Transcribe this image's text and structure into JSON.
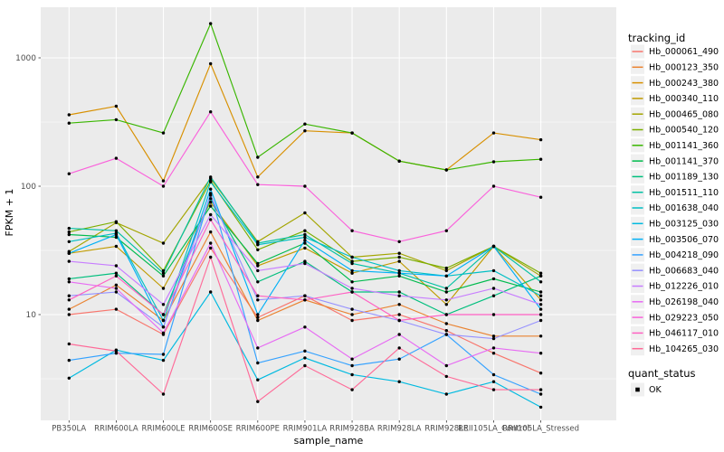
{
  "figure": {
    "background": "#FFFFFF",
    "panel_background": "#EBEBEB",
    "gridline_color": "#FFFFFF",
    "tick_label_color": "#4D4D4D",
    "axis_title_color": "#000000",
    "point_color": "#000000",
    "legend_key_background": "#F0F0F0"
  },
  "chart_data": {
    "type": "line",
    "title": "",
    "xlabel": "sample_name",
    "ylabel": "FPKM + 1",
    "y_scale": "log10",
    "ylim": [
      1.5,
      2500
    ],
    "y_ticks": [
      10,
      100,
      1000
    ],
    "y_minor_ticks": [
      3.162,
      31.62,
      316.2
    ],
    "grid": true,
    "legend_position": "right",
    "categories": [
      "PB350LA",
      "RRIM600LA",
      "RRIM600LE",
      "RRIM600SE",
      "RRIM600PE",
      "RRIM901LA",
      "RRIM928BA",
      "RRIM928LA",
      "RRIM928LE",
      "RRII105LA_Control",
      "RRII105LA_Stressed"
    ],
    "series": [
      {
        "name": "Hb_000061_490",
        "color": "#F8766D",
        "values": [
          10,
          11,
          7,
          33,
          9.5,
          14,
          9,
          10,
          7.5,
          5,
          3.5
        ]
      },
      {
        "name": "Hb_000123_350",
        "color": "#EA8331",
        "values": [
          11,
          17,
          9,
          44,
          9,
          13,
          10,
          12,
          8.5,
          6.8,
          6.8
        ]
      },
      {
        "name": "Hb_000243_380",
        "color": "#D89000",
        "values": [
          360,
          420,
          110,
          900,
          118,
          270,
          260,
          157,
          134,
          260,
          230
        ]
      },
      {
        "name": "Hb_000340_110",
        "color": "#C09B00",
        "values": [
          30,
          34,
          16,
          75,
          24,
          33,
          21,
          26,
          12,
          34,
          13
        ]
      },
      {
        "name": "Hb_000465_080",
        "color": "#A3A500",
        "values": [
          31,
          52,
          36,
          115,
          37,
          62,
          28,
          30,
          22,
          34,
          20
        ]
      },
      {
        "name": "Hb_000540_120",
        "color": "#7CAE00",
        "values": [
          44,
          53,
          22,
          110,
          32,
          45,
          26,
          28,
          23,
          34,
          21
        ]
      },
      {
        "name": "Hb_001141_360",
        "color": "#39B600",
        "values": [
          310,
          330,
          260,
          1850,
          168,
          305,
          260,
          157,
          134,
          155,
          162
        ]
      },
      {
        "name": "Hb_001141_370",
        "color": "#00BB4E",
        "values": [
          42,
          40,
          20,
          70,
          25,
          36,
          18,
          20,
          15,
          19,
          15
        ]
      },
      {
        "name": "Hb_001189_130",
        "color": "#00BF7D",
        "values": [
          19,
          21,
          10,
          80,
          18,
          26,
          15,
          15,
          10,
          14,
          20
        ]
      },
      {
        "name": "Hb_001511_110",
        "color": "#00C1A3",
        "values": [
          47,
          45,
          21,
          118,
          36,
          42,
          25,
          21,
          16,
          34,
          18
        ]
      },
      {
        "name": "Hb_001638_040",
        "color": "#00BFC4",
        "values": [
          37,
          43,
          9,
          108,
          35,
          40,
          28,
          22,
          20,
          22,
          14
        ]
      },
      {
        "name": "Hb_003125_030",
        "color": "#00BAE0",
        "values": [
          3.2,
          5.3,
          4.4,
          15,
          3.1,
          4.6,
          3.4,
          3,
          2.4,
          3,
          1.9
        ]
      },
      {
        "name": "Hb_003506_070",
        "color": "#00B0F6",
        "values": [
          30,
          42,
          8,
          95,
          10,
          38,
          22,
          21,
          20,
          34,
          11
        ]
      },
      {
        "name": "Hb_004218_090",
        "color": "#35A2FF",
        "values": [
          4.4,
          5,
          4.9,
          88,
          4.2,
          5.2,
          4,
          4.5,
          7,
          3.4,
          2.4
        ]
      },
      {
        "name": "Hb_006683_040",
        "color": "#9590FF",
        "values": [
          14,
          15,
          8,
          85,
          13,
          14,
          11,
          9,
          7,
          6.5,
          9
        ]
      },
      {
        "name": "Hb_012226_010",
        "color": "#C77CFF",
        "values": [
          26,
          24,
          12,
          60,
          22,
          25,
          16,
          14,
          13,
          16,
          12
        ]
      },
      {
        "name": "Hb_026198_040",
        "color": "#E76BF3",
        "values": [
          18,
          16,
          7.2,
          36,
          5.5,
          8,
          4.5,
          7,
          4,
          5.5,
          5
        ]
      },
      {
        "name": "Hb_029223_050",
        "color": "#FA62DB",
        "values": [
          125,
          165,
          100,
          380,
          103,
          100,
          45,
          37,
          45,
          100,
          82
        ]
      },
      {
        "name": "Hb_046117_010",
        "color": "#FF61C3",
        "values": [
          13,
          20,
          10,
          55,
          14,
          13,
          15,
          9,
          10,
          10,
          10
        ]
      },
      {
        "name": "Hb_104265_030",
        "color": "#FF6A98",
        "values": [
          5.9,
          5.2,
          2.4,
          28,
          2.1,
          4,
          2.6,
          5.5,
          3.3,
          2.6,
          2.6
        ]
      }
    ],
    "legend": {
      "title": "tracking_id"
    },
    "quant_legend": {
      "title": "quant_status",
      "items": [
        {
          "label": "OK",
          "color": "#000000"
        }
      ]
    }
  }
}
